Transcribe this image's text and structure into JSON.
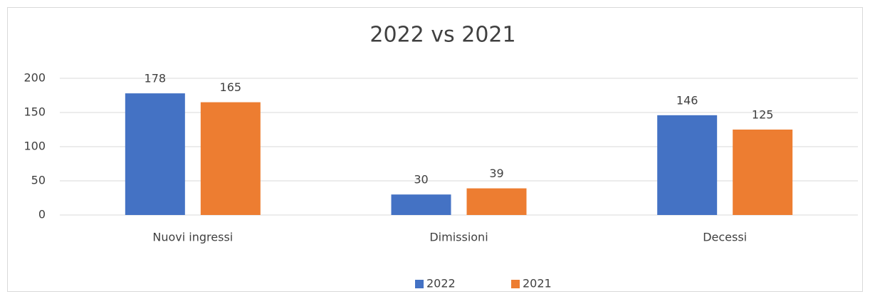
{
  "chart_data": {
    "type": "bar",
    "title": "2022 vs 2021",
    "categories": [
      "Nuovi ingressi",
      "Dimissioni",
      "Decessi"
    ],
    "series": [
      {
        "name": "2022",
        "color": "#4472c4",
        "values": [
          178,
          30,
          146
        ]
      },
      {
        "name": "2021",
        "color": "#ed7d31",
        "values": [
          165,
          39,
          125
        ]
      }
    ],
    "ylim": [
      0,
      200
    ],
    "yticks": [
      0,
      50,
      100,
      150,
      200
    ],
    "grid": true,
    "legend": "bottom"
  }
}
